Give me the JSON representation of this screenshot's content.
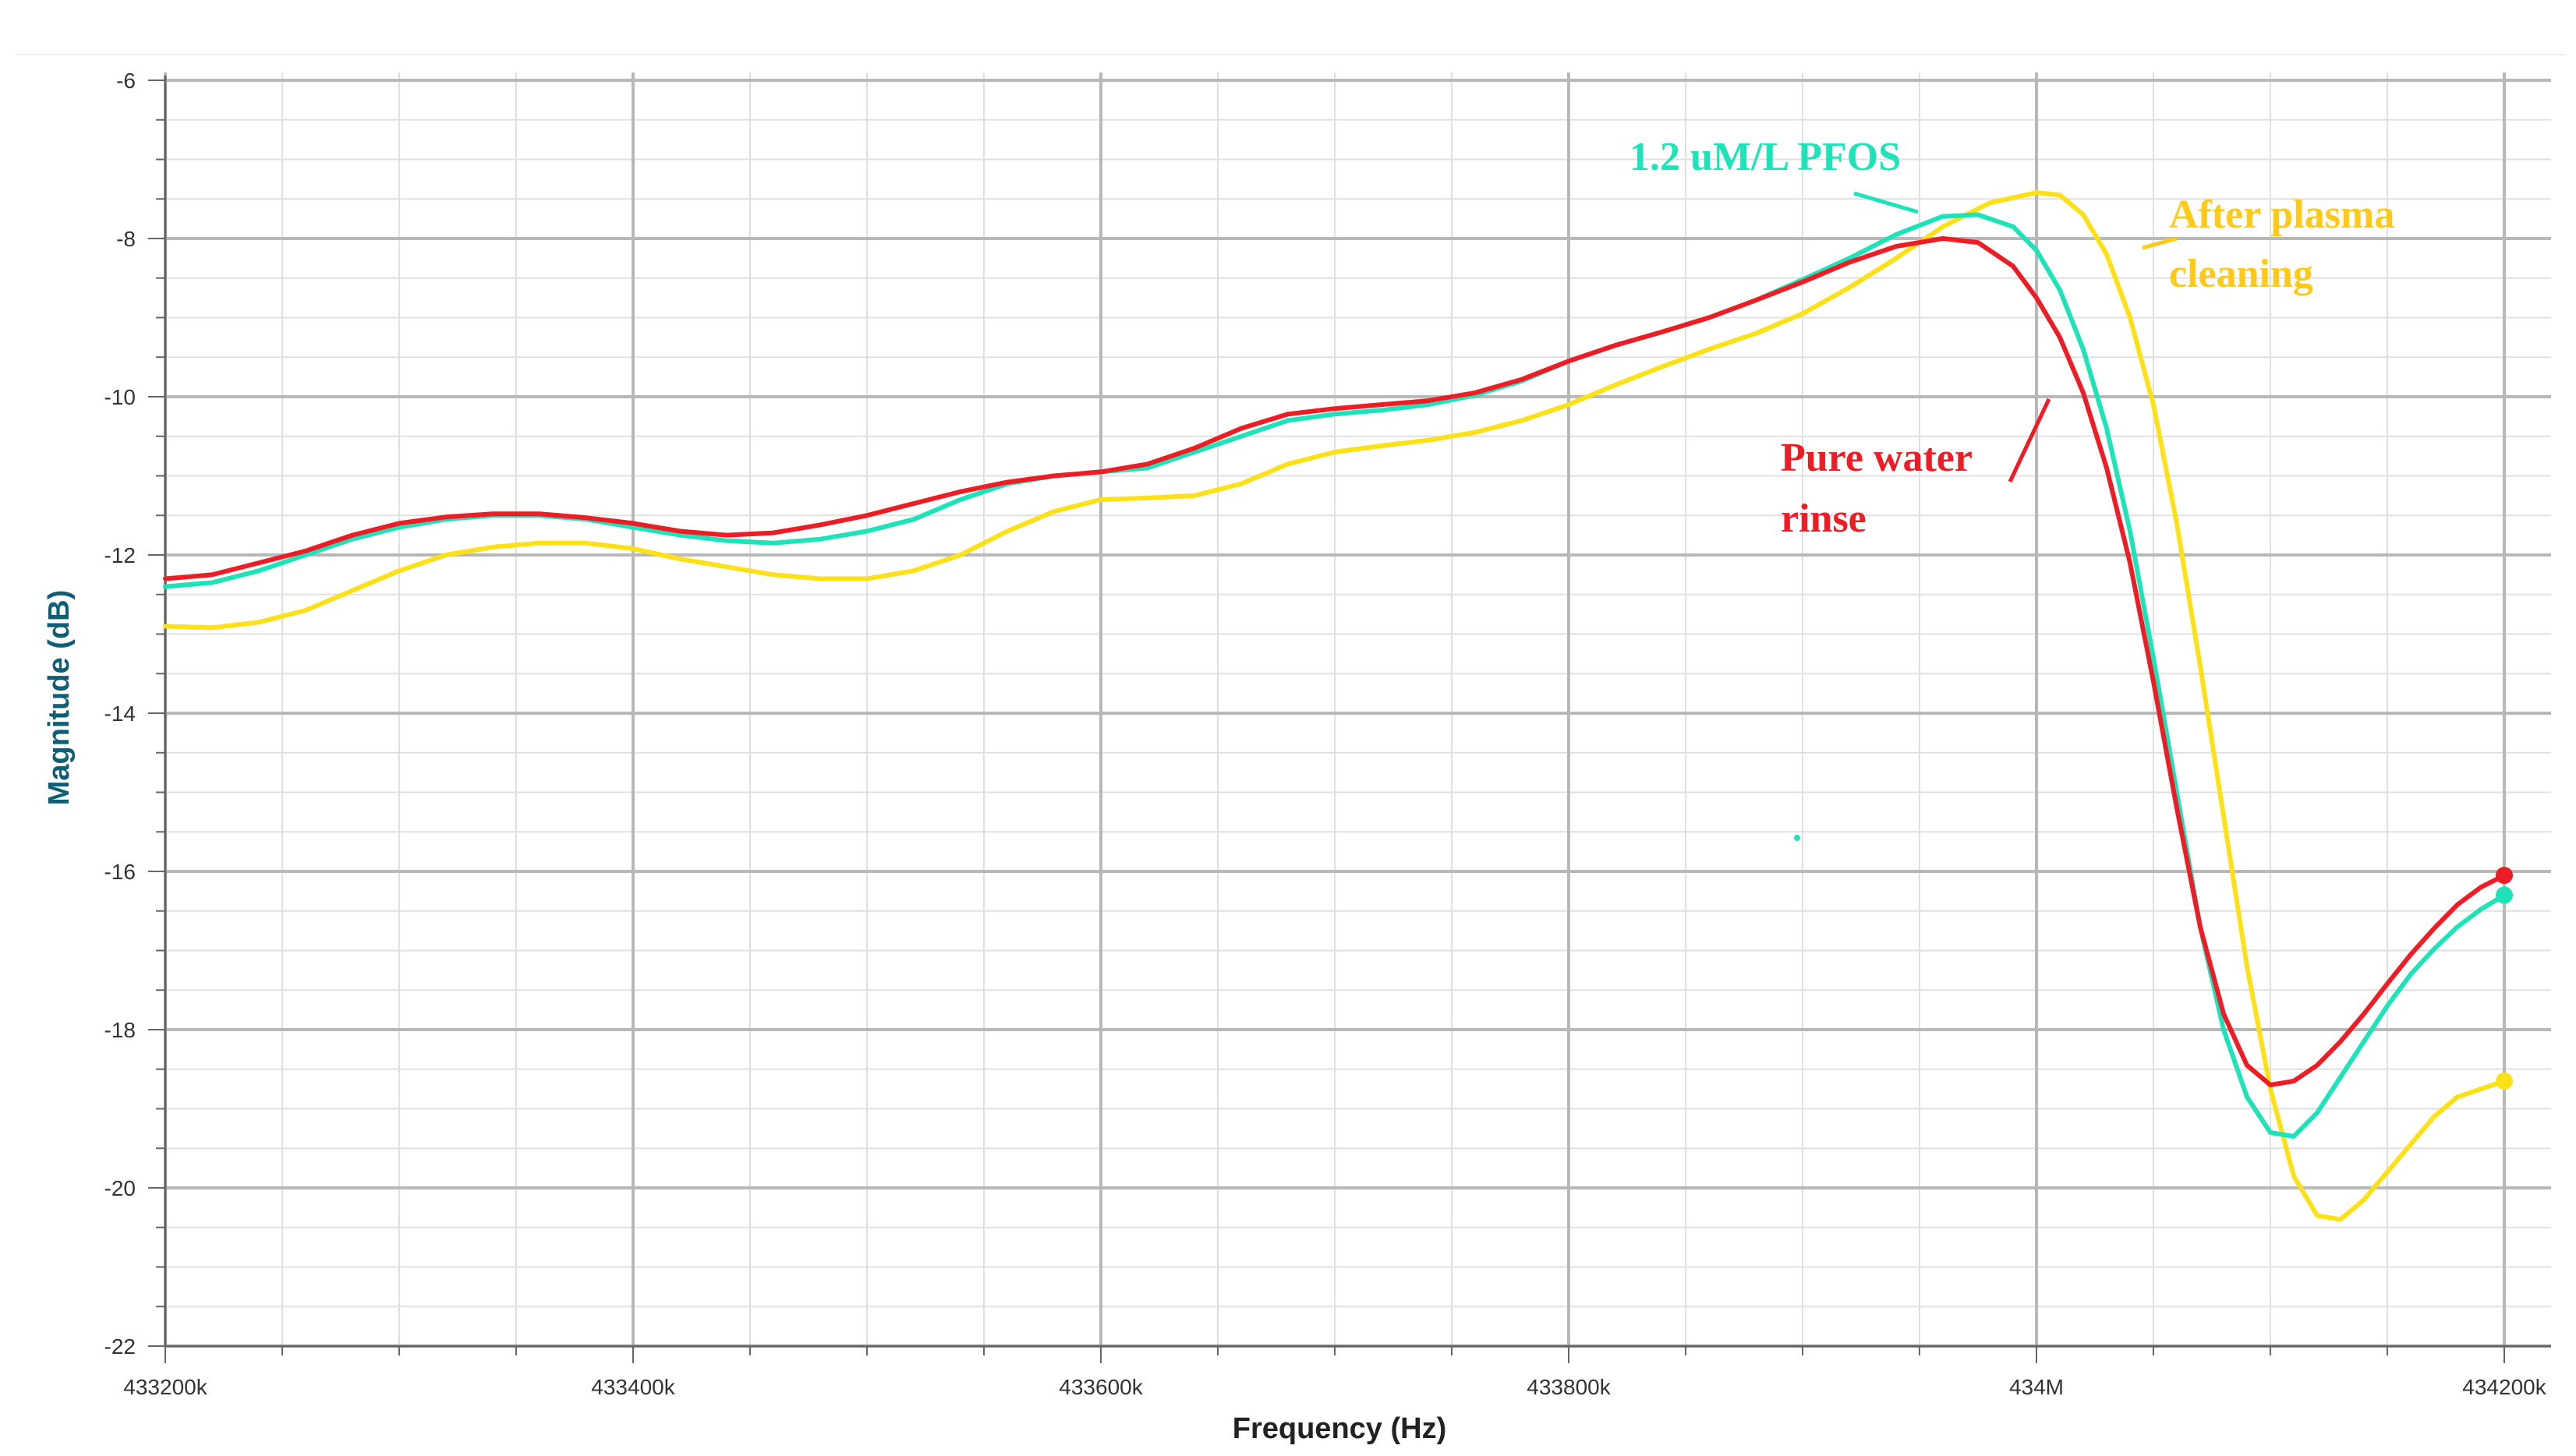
{
  "chart_data": {
    "type": "line",
    "title": "",
    "xlabel": "Frequency (Hz)",
    "ylabel": "Magnitude (dB)",
    "xlim": [
      433200,
      434200
    ],
    "ylim": [
      -22,
      -6
    ],
    "x_ticks": [
      433200,
      433400,
      433600,
      433800,
      434000,
      434200
    ],
    "x_tick_labels": [
      "433200k",
      "433400k",
      "433600k",
      "433800k",
      "434M",
      "434200k"
    ],
    "y_ticks": [
      -6,
      -8,
      -10,
      -12,
      -14,
      -16,
      -18,
      -20,
      -22
    ],
    "y_tick_labels": [
      "-6",
      "-8",
      "-10",
      "-12",
      "-14",
      "-16",
      "-18",
      "-20",
      "-22"
    ],
    "grid": true,
    "series": [
      {
        "name": "Pure water rinse",
        "color": "#ee1c25",
        "points": [
          [
            433200,
            -12.3
          ],
          [
            433220,
            -12.25
          ],
          [
            433240,
            -12.1
          ],
          [
            433260,
            -11.95
          ],
          [
            433280,
            -11.75
          ],
          [
            433300,
            -11.6
          ],
          [
            433320,
            -11.52
          ],
          [
            433340,
            -11.48
          ],
          [
            433360,
            -11.48
          ],
          [
            433380,
            -11.53
          ],
          [
            433400,
            -11.6
          ],
          [
            433420,
            -11.7
          ],
          [
            433440,
            -11.75
          ],
          [
            433460,
            -11.72
          ],
          [
            433480,
            -11.62
          ],
          [
            433500,
            -11.5
          ],
          [
            433520,
            -11.35
          ],
          [
            433540,
            -11.2
          ],
          [
            433560,
            -11.08
          ],
          [
            433580,
            -11.0
          ],
          [
            433600,
            -10.95
          ],
          [
            433620,
            -10.85
          ],
          [
            433640,
            -10.65
          ],
          [
            433660,
            -10.4
          ],
          [
            433680,
            -10.22
          ],
          [
            433700,
            -10.15
          ],
          [
            433720,
            -10.1
          ],
          [
            433740,
            -10.05
          ],
          [
            433760,
            -9.95
          ],
          [
            433780,
            -9.78
          ],
          [
            433800,
            -9.55
          ],
          [
            433820,
            -9.35
          ],
          [
            433840,
            -9.18
          ],
          [
            433860,
            -9.0
          ],
          [
            433880,
            -8.78
          ],
          [
            433900,
            -8.55
          ],
          [
            433920,
            -8.3
          ],
          [
            433940,
            -8.1
          ],
          [
            433960,
            -8.0
          ],
          [
            433975,
            -8.05
          ],
          [
            433990,
            -8.35
          ],
          [
            434000,
            -8.75
          ],
          [
            434010,
            -9.25
          ],
          [
            434020,
            -9.95
          ],
          [
            434030,
            -10.9
          ],
          [
            434040,
            -12.1
          ],
          [
            434050,
            -13.6
          ],
          [
            434060,
            -15.2
          ],
          [
            434070,
            -16.7
          ],
          [
            434080,
            -17.8
          ],
          [
            434090,
            -18.45
          ],
          [
            434100,
            -18.7
          ],
          [
            434110,
            -18.65
          ],
          [
            434120,
            -18.45
          ],
          [
            434130,
            -18.15
          ],
          [
            434140,
            -17.8
          ],
          [
            434150,
            -17.42
          ],
          [
            434160,
            -17.05
          ],
          [
            434170,
            -16.72
          ],
          [
            434180,
            -16.42
          ],
          [
            434190,
            -16.2
          ],
          [
            434200,
            -16.05
          ]
        ]
      },
      {
        "name": "1.2 uM/L PFOS",
        "color": "#1ee3b9",
        "points": [
          [
            433200,
            -12.4
          ],
          [
            433220,
            -12.35
          ],
          [
            433240,
            -12.2
          ],
          [
            433260,
            -12.0
          ],
          [
            433280,
            -11.8
          ],
          [
            433300,
            -11.65
          ],
          [
            433320,
            -11.55
          ],
          [
            433340,
            -11.5
          ],
          [
            433360,
            -11.5
          ],
          [
            433380,
            -11.55
          ],
          [
            433400,
            -11.65
          ],
          [
            433420,
            -11.75
          ],
          [
            433440,
            -11.82
          ],
          [
            433460,
            -11.85
          ],
          [
            433480,
            -11.8
          ],
          [
            433500,
            -11.7
          ],
          [
            433520,
            -11.55
          ],
          [
            433540,
            -11.3
          ],
          [
            433560,
            -11.1
          ],
          [
            433580,
            -11.0
          ],
          [
            433600,
            -10.95
          ],
          [
            433620,
            -10.9
          ],
          [
            433640,
            -10.7
          ],
          [
            433660,
            -10.5
          ],
          [
            433680,
            -10.3
          ],
          [
            433700,
            -10.22
          ],
          [
            433720,
            -10.17
          ],
          [
            433740,
            -10.1
          ],
          [
            433760,
            -9.98
          ],
          [
            433780,
            -9.8
          ],
          [
            433800,
            -9.55
          ],
          [
            433820,
            -9.35
          ],
          [
            433840,
            -9.18
          ],
          [
            433860,
            -9.0
          ],
          [
            433880,
            -8.78
          ],
          [
            433900,
            -8.52
          ],
          [
            433920,
            -8.25
          ],
          [
            433940,
            -7.95
          ],
          [
            433960,
            -7.72
          ],
          [
            433975,
            -7.7
          ],
          [
            433990,
            -7.85
          ],
          [
            434000,
            -8.15
          ],
          [
            434010,
            -8.65
          ],
          [
            434020,
            -9.4
          ],
          [
            434030,
            -10.4
          ],
          [
            434040,
            -11.7
          ],
          [
            434050,
            -13.3
          ],
          [
            434060,
            -15.0
          ],
          [
            434070,
            -16.7
          ],
          [
            434080,
            -18.0
          ],
          [
            434090,
            -18.85
          ],
          [
            434100,
            -19.3
          ],
          [
            434110,
            -19.35
          ],
          [
            434120,
            -19.05
          ],
          [
            434130,
            -18.6
          ],
          [
            434140,
            -18.15
          ],
          [
            434150,
            -17.7
          ],
          [
            434160,
            -17.3
          ],
          [
            434170,
            -16.98
          ],
          [
            434180,
            -16.7
          ],
          [
            434190,
            -16.48
          ],
          [
            434200,
            -16.3
          ]
        ]
      },
      {
        "name": "After plasma cleaning",
        "color": "#fee017",
        "points": [
          [
            433200,
            -12.9
          ],
          [
            433220,
            -12.92
          ],
          [
            433240,
            -12.85
          ],
          [
            433260,
            -12.7
          ],
          [
            433280,
            -12.45
          ],
          [
            433300,
            -12.2
          ],
          [
            433320,
            -12.0
          ],
          [
            433340,
            -11.9
          ],
          [
            433360,
            -11.85
          ],
          [
            433380,
            -11.85
          ],
          [
            433400,
            -11.92
          ],
          [
            433420,
            -12.05
          ],
          [
            433440,
            -12.15
          ],
          [
            433460,
            -12.25
          ],
          [
            433480,
            -12.3
          ],
          [
            433500,
            -12.3
          ],
          [
            433520,
            -12.2
          ],
          [
            433540,
            -12.0
          ],
          [
            433560,
            -11.7
          ],
          [
            433580,
            -11.45
          ],
          [
            433600,
            -11.3
          ],
          [
            433620,
            -11.28
          ],
          [
            433640,
            -11.25
          ],
          [
            433660,
            -11.1
          ],
          [
            433680,
            -10.85
          ],
          [
            433700,
            -10.7
          ],
          [
            433720,
            -10.62
          ],
          [
            433740,
            -10.55
          ],
          [
            433760,
            -10.45
          ],
          [
            433780,
            -10.3
          ],
          [
            433800,
            -10.1
          ],
          [
            433820,
            -9.85
          ],
          [
            433840,
            -9.62
          ],
          [
            433860,
            -9.4
          ],
          [
            433880,
            -9.2
          ],
          [
            433900,
            -8.95
          ],
          [
            433920,
            -8.62
          ],
          [
            433940,
            -8.25
          ],
          [
            433960,
            -7.85
          ],
          [
            433980,
            -7.55
          ],
          [
            434000,
            -7.42
          ],
          [
            434010,
            -7.45
          ],
          [
            434020,
            -7.7
          ],
          [
            434030,
            -8.2
          ],
          [
            434040,
            -9.0
          ],
          [
            434050,
            -10.1
          ],
          [
            434060,
            -11.6
          ],
          [
            434070,
            -13.4
          ],
          [
            434080,
            -15.3
          ],
          [
            434090,
            -17.2
          ],
          [
            434100,
            -18.75
          ],
          [
            434110,
            -19.85
          ],
          [
            434120,
            -20.35
          ],
          [
            434130,
            -20.4
          ],
          [
            434140,
            -20.15
          ],
          [
            434150,
            -19.8
          ],
          [
            434160,
            -19.45
          ],
          [
            434170,
            -19.1
          ],
          [
            434180,
            -18.85
          ],
          [
            434190,
            -18.75
          ],
          [
            434200,
            -18.65
          ]
        ]
      }
    ],
    "annotations": [
      {
        "text": "1.2 uM/L PFOS",
        "color": "#1ee3b9",
        "pointer": true
      },
      {
        "text_lines": [
          "After plasma",
          "cleaning"
        ],
        "color": "#fec917",
        "pointer": true
      },
      {
        "text_lines": [
          "Pure water",
          "rinse"
        ],
        "color": "#ee1c25",
        "pointer": true
      }
    ],
    "colors": {
      "axis_title": "#0e5f73",
      "axis": "#666666",
      "grid_major": "#b8b8b8",
      "grid_minor": "#e0e0e0"
    }
  }
}
